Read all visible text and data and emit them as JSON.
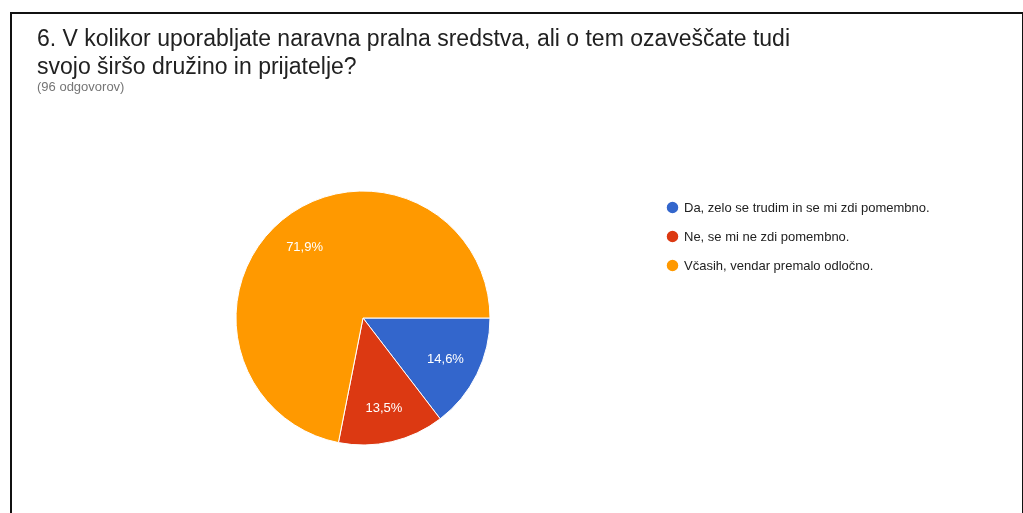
{
  "chart_data": {
    "type": "pie",
    "title": "6. V kolikor uporabljate naravna pralna sredstva, ali o tem ozaveščate tudi svojo širšo družino in prijatelje?",
    "subtitle": "(96 odgovorov)",
    "categories": [
      "Da, zelo se trudim in se mi zdi pomembno.",
      "Ne, se mi ne zdi pomembno.",
      "Včasih, vendar premalo odločno."
    ],
    "values": [
      14.6,
      13.5,
      71.9
    ],
    "colors": [
      "#3366cc",
      "#dc3912",
      "#ff9900"
    ],
    "value_labels": [
      "14,6%",
      "13,5%",
      "71,9%"
    ],
    "legend": "right"
  }
}
